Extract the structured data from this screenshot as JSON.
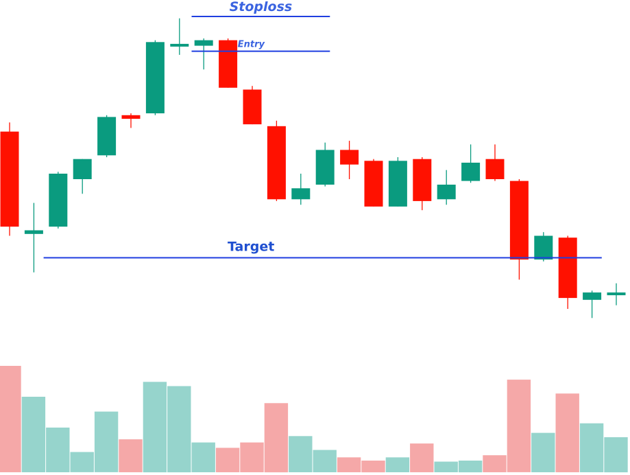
{
  "chart_data": {
    "type": "candlestick",
    "price_range": [
      0,
      100
    ],
    "volume_range": [
      0,
      100
    ],
    "colors": {
      "bull": "#0a9b7f",
      "bear": "#ff1100",
      "bull_volume": "#96d4cc",
      "bear_volume": "#f5a8a8",
      "level_line": "#1f3ee0",
      "stoploss_text": "#3a63e0",
      "entry_text": "#3a63e0",
      "target_text": "#1f4fd0"
    },
    "candles": [
      {
        "o": 72.5,
        "h": 75.0,
        "l": 44.0,
        "c": 46.5,
        "v": 100
      },
      {
        "o": 44.5,
        "h": 53.0,
        "l": 34.0,
        "c": 45.5,
        "v": 71
      },
      {
        "o": 46.5,
        "h": 61.5,
        "l": 46.0,
        "c": 61.0,
        "v": 42
      },
      {
        "o": 59.5,
        "h": 65.0,
        "l": 55.5,
        "c": 65.0,
        "v": 19
      },
      {
        "o": 66.0,
        "h": 77.0,
        "l": 65.5,
        "c": 76.5,
        "v": 57
      },
      {
        "o": 77.0,
        "h": 77.5,
        "l": 73.5,
        "c": 76.0,
        "v": 31
      },
      {
        "o": 77.5,
        "h": 97.5,
        "l": 77.0,
        "c": 97.0,
        "v": 85
      },
      {
        "o": 96.5,
        "h": 103.5,
        "l": 93.5,
        "c": 96.5,
        "v": 81
      },
      {
        "o": 96.0,
        "h": 98.0,
        "l": 89.5,
        "c": 97.5,
        "v": 28
      },
      {
        "o": 97.5,
        "h": 98.0,
        "l": 84.5,
        "c": 84.5,
        "v": 23
      },
      {
        "o": 84.0,
        "h": 85.0,
        "l": 74.5,
        "c": 74.5,
        "v": 28
      },
      {
        "o": 74.0,
        "h": 75.5,
        "l": 53.5,
        "c": 54.0,
        "v": 65
      },
      {
        "o": 54.0,
        "h": 61.0,
        "l": 52.5,
        "c": 57.0,
        "v": 34
      },
      {
        "o": 58.0,
        "h": 69.5,
        "l": 57.5,
        "c": 67.5,
        "v": 21
      },
      {
        "o": 67.5,
        "h": 70.0,
        "l": 59.5,
        "c": 63.5,
        "v": 14
      },
      {
        "o": 64.5,
        "h": 65.0,
        "l": 52.0,
        "c": 52.0,
        "v": 11
      },
      {
        "o": 52.0,
        "h": 65.5,
        "l": 52.0,
        "c": 64.5,
        "v": 14
      },
      {
        "o": 65.0,
        "h": 65.5,
        "l": 51.0,
        "c": 53.5,
        "v": 27
      },
      {
        "o": 54.0,
        "h": 62.0,
        "l": 52.5,
        "c": 58.0,
        "v": 10
      },
      {
        "o": 59.0,
        "h": 69.0,
        "l": 58.5,
        "c": 64.0,
        "v": 11
      },
      {
        "o": 65.0,
        "h": 69.0,
        "l": 59.0,
        "c": 59.5,
        "v": 16
      },
      {
        "o": 59.0,
        "h": 59.5,
        "l": 32.0,
        "c": 37.5,
        "v": 87
      },
      {
        "o": 37.5,
        "h": 45.0,
        "l": 37.0,
        "c": 44.0,
        "v": 37
      },
      {
        "o": 43.5,
        "h": 44.0,
        "l": 24.0,
        "c": 27.0,
        "v": 74
      },
      {
        "o": 26.5,
        "h": 29.0,
        "l": 21.5,
        "c": 28.5,
        "v": 46
      },
      {
        "o": 28.0,
        "h": 31.0,
        "l": 25.0,
        "c": 28.5,
        "v": 33
      }
    ],
    "levels": {
      "stoploss": {
        "label": "Stoploss",
        "price": 104.0,
        "from_index": 7.5,
        "to_index": 13.2
      },
      "entry": {
        "label": "Entry",
        "price": 94.5,
        "from_index": 7.5,
        "to_index": 13.2
      },
      "target": {
        "label": "Target",
        "price": 38.0,
        "from_index": 1.4,
        "to_index": 24.4
      }
    }
  }
}
